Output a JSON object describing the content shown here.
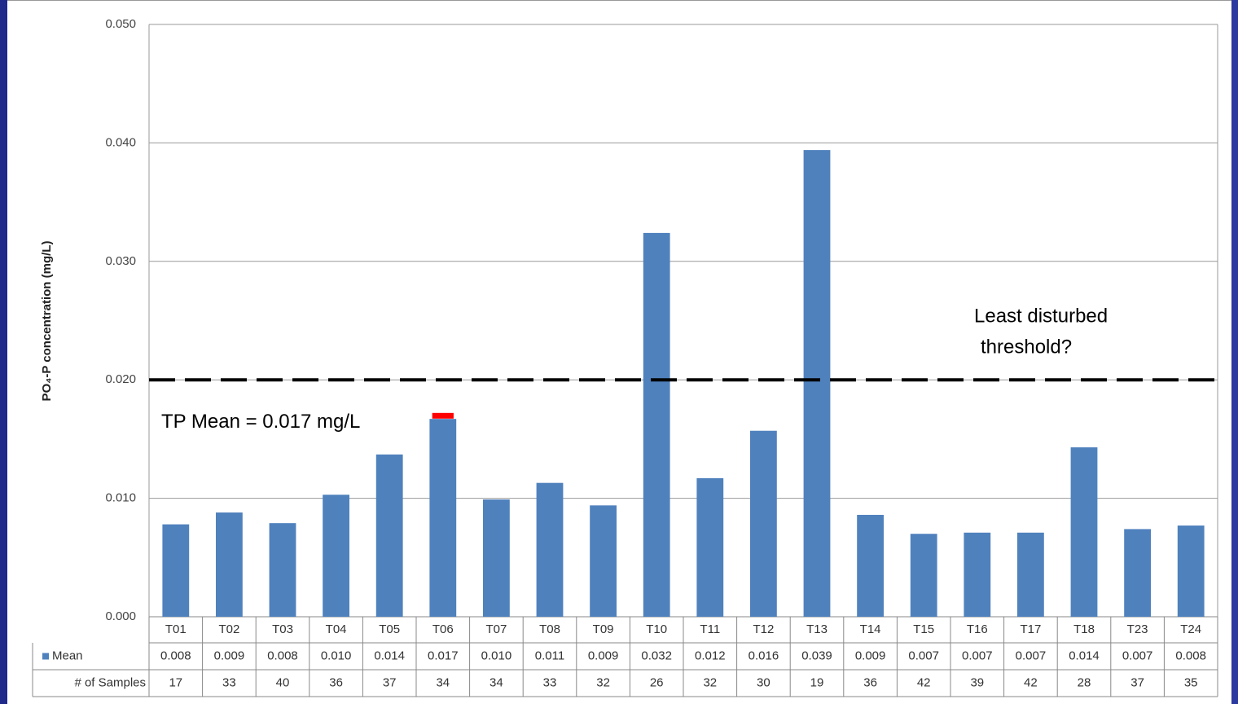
{
  "chart_data": {
    "type": "bar",
    "y_label": "PO₄-P concentration (mg/L)",
    "categories": [
      "T01",
      "T02",
      "T03",
      "T04",
      "T05",
      "T06",
      "T07",
      "T08",
      "T09",
      "T10",
      "T11",
      "T12",
      "T13",
      "T14",
      "T15",
      "T16",
      "T17",
      "T18",
      "T23",
      "T24"
    ],
    "series": [
      {
        "name": "Mean",
        "color": "#4f81bd",
        "values": [
          0.0078,
          0.0088,
          0.0079,
          0.0103,
          0.0137,
          0.0167,
          0.0099,
          0.0113,
          0.0094,
          0.0324,
          0.0117,
          0.0157,
          0.0394,
          0.0086,
          0.007,
          0.0071,
          0.0071,
          0.0143,
          0.0074,
          0.0077
        ],
        "value_labels": [
          "0.008",
          "0.009",
          "0.008",
          "0.010",
          "0.014",
          "0.017",
          "0.010",
          "0.011",
          "0.009",
          "0.032",
          "0.012",
          "0.016",
          "0.039",
          "0.009",
          "0.007",
          "0.007",
          "0.007",
          "0.014",
          "0.007",
          "0.008"
        ]
      }
    ],
    "samples_label": "# of Samples",
    "samples": [
      17,
      33,
      40,
      36,
      37,
      34,
      34,
      33,
      32,
      26,
      32,
      30,
      19,
      36,
      42,
      39,
      42,
      28,
      37,
      35
    ],
    "ylim": [
      0,
      0.05
    ],
    "yticks": [
      {
        "value": 0,
        "label": "0.000"
      },
      {
        "value": 0.01,
        "label": "0.010"
      },
      {
        "value": 0.02,
        "label": "0.020"
      },
      {
        "value": 0.03,
        "label": "0.030"
      },
      {
        "value": 0.04,
        "label": "0.040"
      },
      {
        "value": 0.05,
        "label": "0.050"
      }
    ],
    "grid": true,
    "tp_mean": {
      "value": 0.017,
      "category": 5,
      "color": "#ff0000",
      "label": "TP Mean = 0.017 mg/L"
    },
    "threshold": {
      "value": 0.02,
      "label": [
        "Least disturbed",
        "threshold?"
      ]
    }
  }
}
